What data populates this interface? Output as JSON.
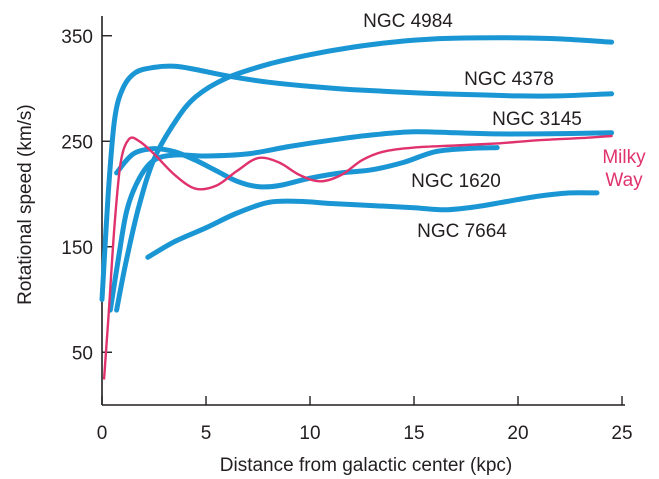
{
  "chart_data": {
    "type": "line",
    "title": "",
    "xlabel": "Distance from galactic center (kpc)",
    "ylabel": "Rotational speed (km/s)",
    "xlim": [
      0,
      25
    ],
    "ylim": [
      0,
      380
    ],
    "xticks": [
      0,
      5,
      10,
      15,
      20,
      25
    ],
    "yticks": [
      50,
      150,
      250,
      350
    ],
    "grid": false,
    "legend": "none",
    "colors": {
      "galaxy": "#1a96d4",
      "milky_way": "#e0336d",
      "axis": "#231f20"
    },
    "series": [
      {
        "name": "NGC 4984",
        "color": "#1a96d4",
        "label_lines": [
          "NGC 4984"
        ],
        "points": [
          [
            0.7,
            90
          ],
          [
            1.2,
            140
          ],
          [
            1.8,
            190
          ],
          [
            2.5,
            233
          ],
          [
            3.5,
            268
          ],
          [
            4.5,
            292
          ],
          [
            6,
            310
          ],
          [
            8,
            323
          ],
          [
            10,
            332
          ],
          [
            12,
            339
          ],
          [
            14,
            344
          ],
          [
            16,
            347
          ],
          [
            18,
            348
          ],
          [
            20,
            348
          ],
          [
            22,
            347
          ],
          [
            24.5,
            344
          ]
        ]
      },
      {
        "name": "NGC 4378",
        "color": "#1a96d4",
        "label_lines": [
          "NGC 4378"
        ],
        "points": [
          [
            0,
            100
          ],
          [
            0.3,
            200
          ],
          [
            0.6,
            270
          ],
          [
            1,
            300
          ],
          [
            1.6,
            315
          ],
          [
            2.5,
            320
          ],
          [
            3.5,
            321
          ],
          [
            4.5,
            318
          ],
          [
            6,
            312
          ],
          [
            8,
            306
          ],
          [
            10,
            302
          ],
          [
            12,
            299
          ],
          [
            15,
            296
          ],
          [
            18,
            294
          ],
          [
            20,
            293
          ],
          [
            22,
            293
          ],
          [
            24.5,
            295
          ]
        ]
      },
      {
        "name": "NGC 3145",
        "color": "#1a96d4",
        "label_lines": [
          "NGC 3145"
        ],
        "points": [
          [
            0.4,
            90
          ],
          [
            0.8,
            140
          ],
          [
            1.2,
            185
          ],
          [
            1.8,
            215
          ],
          [
            2.5,
            232
          ],
          [
            3.5,
            237
          ],
          [
            5,
            236
          ],
          [
            7,
            238
          ],
          [
            9,
            245
          ],
          [
            11,
            251
          ],
          [
            13,
            256
          ],
          [
            15,
            259
          ],
          [
            17,
            258
          ],
          [
            19,
            257
          ],
          [
            21,
            257
          ],
          [
            24.5,
            258
          ]
        ]
      },
      {
        "name": "NGC 1620",
        "color": "#1a96d4",
        "label_lines": [
          "NGC 1620"
        ],
        "points": [
          [
            0.7,
            220
          ],
          [
            1.5,
            238
          ],
          [
            2.5,
            243
          ],
          [
            3.5,
            240
          ],
          [
            4.5,
            232
          ],
          [
            5.5,
            222
          ],
          [
            6.5,
            212
          ],
          [
            7.5,
            207
          ],
          [
            8.5,
            208
          ],
          [
            10,
            215
          ],
          [
            11.5,
            220
          ],
          [
            13,
            223
          ],
          [
            14.5,
            230
          ],
          [
            16,
            240
          ],
          [
            17.5,
            243
          ],
          [
            19,
            244
          ]
        ]
      },
      {
        "name": "NGC 7664",
        "color": "#1a96d4",
        "label_lines": [
          "NGC 7664"
        ],
        "points": [
          [
            2.2,
            140
          ],
          [
            3.5,
            155
          ],
          [
            5,
            168
          ],
          [
            6.5,
            182
          ],
          [
            8,
            192
          ],
          [
            9.5,
            193
          ],
          [
            11,
            191
          ],
          [
            13,
            189
          ],
          [
            15,
            187
          ],
          [
            16.5,
            185
          ],
          [
            18,
            188
          ],
          [
            19.5,
            193
          ],
          [
            21,
            198
          ],
          [
            22.5,
            201
          ],
          [
            23.8,
            201
          ]
        ]
      },
      {
        "name": "Milky Way",
        "color": "#e0336d",
        "label_lines": [
          "Milky",
          "Way"
        ],
        "points": [
          [
            0.1,
            25
          ],
          [
            0.3,
            80
          ],
          [
            0.6,
            170
          ],
          [
            0.9,
            230
          ],
          [
            1.3,
            252
          ],
          [
            1.8,
            250
          ],
          [
            2.5,
            238
          ],
          [
            3.5,
            218
          ],
          [
            4.5,
            205
          ],
          [
            5.5,
            208
          ],
          [
            6.5,
            222
          ],
          [
            7.5,
            234
          ],
          [
            8.5,
            230
          ],
          [
            9.5,
            218
          ],
          [
            10.5,
            212
          ],
          [
            11.5,
            218
          ],
          [
            12.5,
            232
          ],
          [
            13.5,
            240
          ],
          [
            15,
            244
          ],
          [
            17,
            246
          ],
          [
            19,
            248
          ],
          [
            21,
            251
          ],
          [
            23,
            253
          ],
          [
            24.5,
            255
          ]
        ]
      }
    ]
  }
}
